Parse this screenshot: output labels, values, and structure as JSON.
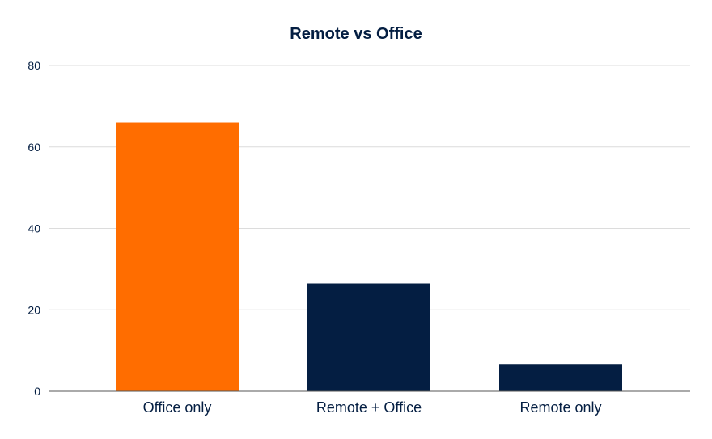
{
  "chart_data": {
    "type": "bar",
    "title": "Remote vs Office",
    "xlabel": "",
    "ylabel": "",
    "categories": [
      "Office only",
      "Remote + Office",
      "Remote only"
    ],
    "values": [
      66,
      26.5,
      6.7
    ],
    "bar_colors": [
      "#ff6d00",
      "#041e42",
      "#041e42"
    ],
    "ylim": [
      0,
      80
    ],
    "yticks": [
      0,
      20,
      40,
      60,
      80
    ],
    "grid": true,
    "legend": "none"
  },
  "colors": {
    "title": "#041e42",
    "text": "#041e42",
    "grid": "#dcdcdc",
    "axis": "#555555"
  }
}
